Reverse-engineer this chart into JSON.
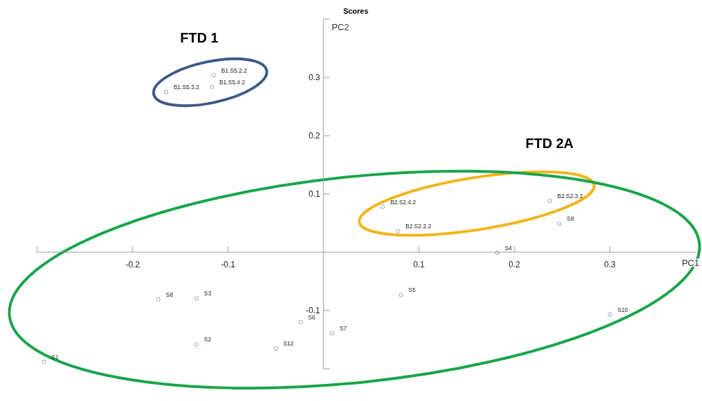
{
  "chart_data": {
    "type": "scatter",
    "title": "Scores",
    "xlabel": "PC1",
    "ylabel": "PC2",
    "x": [
      -0.293,
      -0.173,
      -0.133,
      -0.133,
      -0.05,
      -0.024,
      0.009,
      0.081,
      0.182,
      0.3,
      0.247,
      0.237,
      0.062,
      0.078,
      -0.115,
      -0.117,
      -0.165
    ],
    "series": [
      {
        "color": "#8fa6c4",
        "values": [
          -0.188,
          -0.081,
          -0.079,
          -0.158,
          -0.165,
          -0.12,
          -0.139,
          -0.073,
          -0.001,
          -0.107,
          0.049,
          0.088,
          0.078,
          0.036,
          0.304,
          0.284,
          0.275
        ]
      }
    ],
    "marker": "circle",
    "xlim": [
      -0.3,
      0.39
    ],
    "ylim": [
      -0.2,
      0.4
    ],
    "xticks": [
      {
        "value": -0.3,
        "label": null
      },
      -0.2,
      -0.1,
      0.1,
      0.2,
      0.3
    ],
    "yticks": [
      {
        "value": -0.2,
        "label": null
      },
      -0.1,
      0.1,
      0.2,
      0.3,
      {
        "value": 0.4,
        "label": null
      }
    ],
    "grid": false,
    "annotations": [
      "FTD 1",
      "FTD 2A",
      {
        "text": "S1",
        "x": -0.293,
        "y": -0.188
      },
      {
        "text": "S8",
        "x": -0.173,
        "y": -0.081
      },
      {
        "text": "S3",
        "x": -0.133,
        "y": -0.079
      },
      {
        "text": "S2",
        "x": -0.133,
        "y": -0.158
      },
      {
        "text": "S12",
        "x": -0.05,
        "y": -0.165
      },
      {
        "text": "S6",
        "x": -0.024,
        "y": -0.12
      },
      {
        "text": "S7",
        "x": 0.009,
        "y": -0.139
      },
      {
        "text": "S5",
        "x": 0.081,
        "y": -0.073
      },
      {
        "text": "S4",
        "x": 0.182,
        "y": -0.001
      },
      {
        "text": "S10",
        "x": 0.3,
        "y": -0.107
      },
      {
        "text": "S9",
        "x": 0.247,
        "y": 0.049
      },
      {
        "text": "B2.S2.3.2",
        "x": 0.237,
        "y": 0.088
      },
      {
        "text": "B2.S2.4.2",
        "x": 0.062,
        "y": 0.078
      },
      {
        "text": "B2.S2.2.2",
        "x": 0.078,
        "y": 0.036
      },
      {
        "text": "B1.S5.2.2",
        "x": -0.115,
        "y": 0.304
      },
      {
        "text": "B1.S5.4.2",
        "x": -0.117,
        "y": 0.284
      },
      {
        "text": "B1.S5.3.2",
        "x": -0.165,
        "y": 0.275
      }
    ]
  }
}
